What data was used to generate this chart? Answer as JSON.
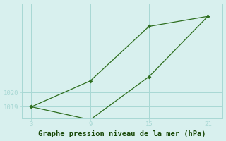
{
  "x": [
    3,
    9,
    15,
    21
  ],
  "line1_y": [
    1019.0,
    1020.8,
    1024.6,
    1025.3
  ],
  "line2_y": [
    1019.0,
    1018.1,
    1021.1,
    1025.3
  ],
  "line_color": "#2d6e1e",
  "marker": "D",
  "marker_size": 2.5,
  "bg_color": "#d8f0ee",
  "grid_color": "#a8d8d4",
  "xlabel": "Graphe pression niveau de la mer (hPa)",
  "xlabel_color": "#1a4a0a",
  "xlabel_fontsize": 7.5,
  "tick_color": "#2d6e1e",
  "tick_fontsize": 6.5,
  "xticks": [
    3,
    9,
    15,
    21
  ],
  "yticks": [
    1019,
    1020
  ],
  "xlim": [
    2.0,
    22.5
  ],
  "ylim": [
    1018.2,
    1026.2
  ]
}
